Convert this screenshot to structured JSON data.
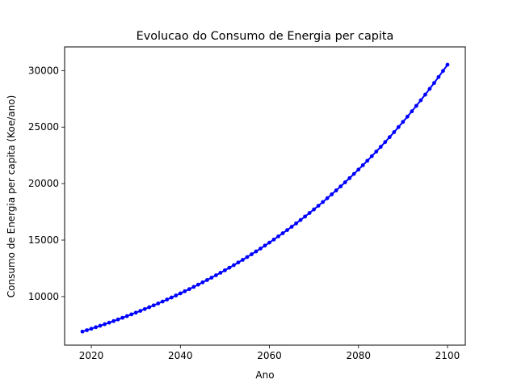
{
  "chart_data": {
    "type": "line",
    "title": "Evolucao do Consumo de Energia per capita",
    "xlabel": "Ano",
    "ylabel": "Consumo de Energia per capita (Koe/ano)",
    "xlim": [
      2014,
      2104
    ],
    "ylim": [
      5700,
      32100
    ],
    "x_ticks": [
      2020,
      2040,
      2060,
      2080,
      2100
    ],
    "y_ticks": [
      10000,
      15000,
      20000,
      25000,
      30000
    ],
    "grid": false,
    "legend": "none",
    "series": [
      {
        "color": "#0000ff",
        "marker": "circle",
        "x_start": 2018,
        "x_end": 2100,
        "x_step": 1,
        "start_value": 6900,
        "growth_rate": 0.0183,
        "values": [
          6900,
          7026,
          7155,
          7286,
          7419,
          7555,
          7693,
          7834,
          7977,
          8123,
          8272,
          8423,
          8577,
          8734,
          8894,
          9057,
          9223,
          9391,
          9563,
          9738,
          9916,
          10098,
          10283,
          10471,
          10662,
          10858,
          11056,
          11258,
          11464,
          11674,
          11888,
          12105,
          12327,
          12553,
          12782,
          13016,
          13254,
          13497,
          13744,
          13995,
          14251,
          14512,
          14778,
          15048,
          15324,
          15604,
          15889,
          16180,
          16476,
          16778,
          17085,
          17397,
          17716,
          18040,
          18370,
          18706,
          19048,
          19397,
          19752,
          20113,
          20481,
          20856,
          21238,
          21626,
          22022,
          22425,
          22835,
          23253,
          23679,
          24112,
          24553,
          25002,
          25460,
          25926,
          26400,
          26883,
          27375,
          27876,
          28386,
          28905,
          29434,
          29973,
          30521
        ]
      }
    ]
  }
}
